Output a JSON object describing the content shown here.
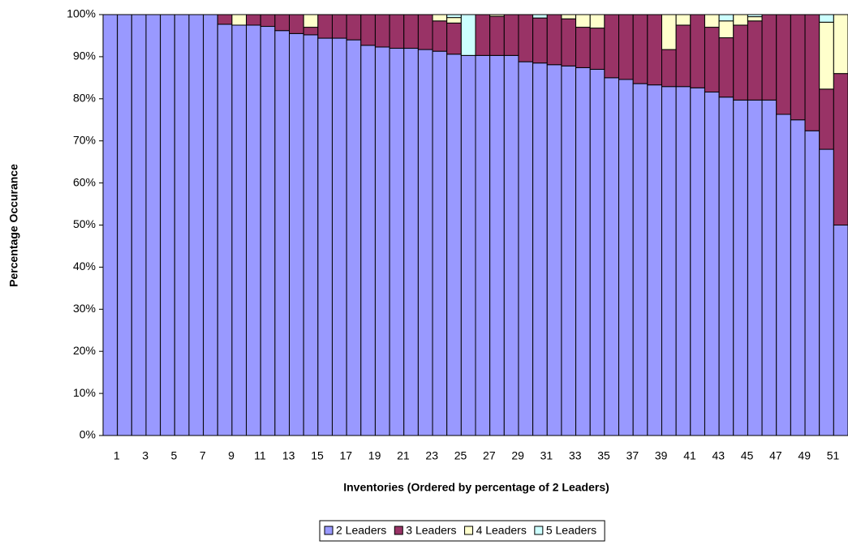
{
  "chart_data": {
    "type": "stacked_bar_percent",
    "x_label": "Inventories (Ordered by percentage of 2 Leaders)",
    "y_label": "Percentage Occurance",
    "categories": [
      1,
      null,
      3,
      null,
      5,
      null,
      7,
      null,
      9,
      null,
      11,
      null,
      13,
      null,
      15,
      null,
      17,
      null,
      19,
      null,
      21,
      null,
      23,
      null,
      25,
      null,
      27,
      null,
      29,
      null,
      31,
      null,
      33,
      null,
      35,
      null,
      37,
      null,
      39,
      null,
      41,
      null,
      43,
      null,
      45,
      null,
      47,
      null,
      49,
      null,
      51,
      null
    ],
    "series": [
      {
        "name": "2 Leaders",
        "color": "#9999ff",
        "values": [
          100,
          100,
          100,
          100,
          100,
          100,
          100,
          100,
          97.7,
          97.5,
          97.5,
          97.2,
          96.2,
          95.5,
          95.2,
          94.4,
          94.4,
          94,
          92.7,
          92.3,
          92,
          92,
          91.7,
          91.3,
          90.6,
          90.3,
          90.3,
          90.3,
          90.3,
          88.8,
          88.5,
          88.1,
          87.8,
          87.4,
          87,
          85,
          84.6,
          83.6,
          83.3,
          82.9,
          82.9,
          82.6,
          81.6,
          80.4,
          79.7,
          79.7,
          79.7,
          76.3,
          75,
          72.4,
          68,
          50
        ]
      },
      {
        "name": "3 Leaders",
        "color": "#993366",
        "values": [
          0,
          0,
          0,
          0,
          0,
          0,
          0,
          0,
          2.3,
          0,
          2.5,
          2.8,
          3.8,
          4.5,
          1.8,
          5.6,
          5.6,
          6,
          7.3,
          7.7,
          8,
          8,
          8.3,
          7.2,
          7.4,
          0,
          9.7,
          9.3,
          9.7,
          11.2,
          10.7,
          11.9,
          11.2,
          9.6,
          9.8,
          15,
          15.4,
          16.4,
          16.7,
          8.8,
          14.6,
          17.4,
          15.4,
          14.1,
          17.8,
          18.8,
          20.3,
          23.7,
          25,
          27.6,
          14.3,
          36
        ]
      },
      {
        "name": "4 Leaders",
        "color": "#ffffcc",
        "values": [
          0,
          0,
          0,
          0,
          0,
          0,
          0,
          0,
          0,
          2.5,
          0,
          0,
          0,
          0,
          3,
          0,
          0,
          0,
          0,
          0,
          0,
          0,
          0,
          1.5,
          1.3,
          0,
          0,
          0.4,
          0,
          0,
          0,
          0,
          1,
          3,
          3.2,
          0,
          0,
          0,
          0,
          8.3,
          2.5,
          0,
          3,
          4,
          2.5,
          1,
          0,
          0,
          0,
          0,
          15.9,
          14
        ]
      },
      {
        "name": "5 Leaders",
        "color": "#ccffff",
        "values": [
          0,
          0,
          0,
          0,
          0,
          0,
          0,
          0,
          0,
          0,
          0,
          0,
          0,
          0,
          0,
          0,
          0,
          0,
          0,
          0,
          0,
          0,
          0,
          0,
          0.7,
          9.7,
          0,
          0,
          0,
          0,
          0.8,
          0,
          0,
          0,
          0,
          0,
          0,
          0,
          0,
          0,
          0,
          0,
          0,
          1.5,
          0,
          0.5,
          0,
          0,
          0,
          0,
          1.8,
          0
        ]
      }
    ],
    "ylim": [
      0,
      100
    ],
    "yticks": [
      {
        "value": 0,
        "label": "0%"
      },
      {
        "value": 10,
        "label": "10%"
      },
      {
        "value": 20,
        "label": "20%"
      },
      {
        "value": 30,
        "label": "30%"
      },
      {
        "value": 40,
        "label": "40%"
      },
      {
        "value": 50,
        "label": "50%"
      },
      {
        "value": 60,
        "label": "60%"
      },
      {
        "value": 70,
        "label": "70%"
      },
      {
        "value": 80,
        "label": "80%"
      },
      {
        "value": 90,
        "label": "90%"
      },
      {
        "value": 100,
        "label": "100%"
      }
    ],
    "legend": "bottom"
  }
}
